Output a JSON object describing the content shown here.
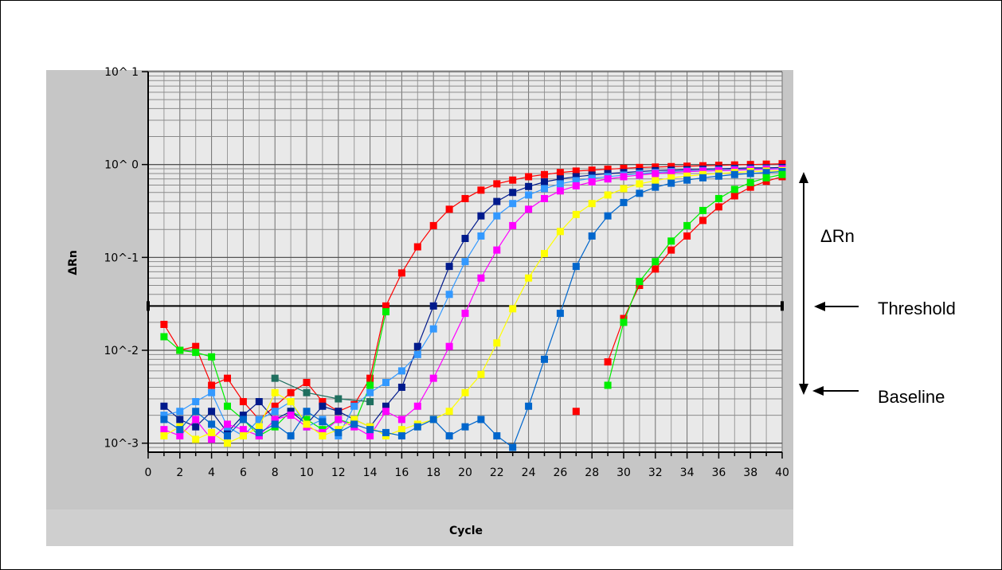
{
  "chart_data": {
    "type": "line",
    "title": "",
    "xlabel": "Cycle",
    "ylabel": "ΔRn",
    "y_scale": "log",
    "xlim": [
      0,
      40
    ],
    "ylim": [
      0.0008,
      10
    ],
    "x_ticks": [
      0,
      2,
      4,
      6,
      8,
      10,
      12,
      14,
      16,
      18,
      20,
      22,
      24,
      26,
      28,
      30,
      32,
      34,
      36,
      38,
      40
    ],
    "y_ticks": [
      {
        "value": 10,
        "label": "10^ 1"
      },
      {
        "value": 1,
        "label": "10^ 0"
      },
      {
        "value": 0.1,
        "label": "10^-1"
      },
      {
        "value": 0.01,
        "label": "10^-2"
      },
      {
        "value": 0.001,
        "label": "10^-3"
      }
    ],
    "grid": true,
    "threshold": 0.03,
    "marker": "square",
    "colors": [
      "#ff0000",
      "#00ee00",
      "#001a8c",
      "#3399ff",
      "#ff00ff",
      "#ffff00",
      "#0066cc",
      "#1f6f5f",
      "#5555ff",
      "#00cccc"
    ],
    "series": [
      {
        "color": "#ff0000",
        "x": [
          1,
          2,
          3,
          4,
          5,
          6,
          7,
          8,
          9,
          10,
          11,
          12,
          13,
          14,
          15,
          16,
          17,
          18,
          19,
          20,
          21,
          22,
          23,
          24,
          25,
          26,
          27,
          28,
          29,
          30,
          31,
          32,
          33,
          34,
          35,
          36,
          37,
          38,
          39,
          40
        ],
        "y": [
          0.019,
          0.01,
          0.011,
          0.0042,
          0.005,
          0.0028,
          0.0018,
          0.0025,
          0.0035,
          0.0045,
          0.0028,
          0.0022,
          0.0026,
          0.005,
          0.03,
          0.068,
          0.13,
          0.22,
          0.33,
          0.43,
          0.53,
          0.62,
          0.68,
          0.74,
          0.78,
          0.82,
          0.85,
          0.87,
          0.89,
          0.91,
          0.93,
          0.94,
          0.95,
          0.96,
          0.97,
          0.98,
          0.99,
          1.0,
          1.01,
          1.02
        ]
      },
      {
        "color": "#00ee00",
        "x": [
          1,
          2,
          3,
          4,
          5,
          6,
          7,
          8,
          9,
          10,
          11,
          12,
          13,
          14,
          15
        ],
        "y": [
          0.014,
          0.01,
          0.0095,
          0.0085,
          0.0025,
          0.0018,
          0.0012,
          0.0015,
          0.0022,
          0.0018,
          0.0014,
          0.0018,
          0.0016,
          0.0042,
          0.026
        ]
      },
      {
        "color": "#001a8c",
        "x": [
          1,
          2,
          3,
          4,
          5,
          6,
          7,
          8,
          9,
          10,
          11,
          12,
          13,
          14,
          15,
          16,
          17,
          18,
          19,
          20,
          21,
          22,
          23,
          24,
          25,
          26,
          27,
          28,
          29,
          30,
          31,
          32,
          33,
          34,
          35,
          36,
          37,
          38,
          39,
          40
        ],
        "y": [
          0.0025,
          0.0018,
          0.0015,
          0.0022,
          0.0013,
          0.002,
          0.0028,
          0.0018,
          0.0022,
          0.0016,
          0.0025,
          0.0022,
          0.0018,
          0.0015,
          0.0025,
          0.004,
          0.011,
          0.03,
          0.08,
          0.16,
          0.28,
          0.4,
          0.5,
          0.58,
          0.65,
          0.7,
          0.74,
          0.77,
          0.8,
          0.82,
          0.84,
          0.86,
          0.87,
          0.88,
          0.89,
          0.9,
          0.91,
          0.92,
          0.92,
          0.93
        ]
      },
      {
        "color": "#3399ff",
        "x": [
          1,
          2,
          3,
          4,
          5,
          6,
          7,
          8,
          9,
          10,
          11,
          12,
          13,
          14,
          15,
          16,
          17,
          18,
          19,
          20,
          21,
          22,
          23,
          24,
          25,
          26,
          27,
          28,
          29,
          30,
          31,
          32,
          33,
          34,
          35,
          36,
          37,
          38,
          39,
          40
        ],
        "y": [
          0.002,
          0.0022,
          0.0028,
          0.0035,
          0.0015,
          0.0012,
          0.0018,
          0.0022,
          0.0028,
          0.0015,
          0.0018,
          0.0012,
          0.0025,
          0.0035,
          0.0045,
          0.006,
          0.009,
          0.017,
          0.04,
          0.09,
          0.17,
          0.28,
          0.38,
          0.47,
          0.55,
          0.62,
          0.67,
          0.71,
          0.74,
          0.77,
          0.8,
          0.82,
          0.84,
          0.85,
          0.86,
          0.87,
          0.88,
          0.89,
          0.9,
          0.9
        ]
      },
      {
        "color": "#ff00ff",
        "x": [
          1,
          2,
          3,
          4,
          5,
          6,
          7,
          8,
          9,
          10,
          11,
          12,
          13,
          14,
          15,
          16,
          17,
          18,
          19,
          20,
          21,
          22,
          23,
          24,
          25,
          26,
          27,
          28,
          29,
          30,
          31,
          32,
          33,
          34,
          35,
          36,
          37,
          38,
          39,
          40
        ],
        "y": [
          0.0014,
          0.0012,
          0.0018,
          0.0011,
          0.0016,
          0.0014,
          0.0012,
          0.0018,
          0.002,
          0.0015,
          0.0013,
          0.0018,
          0.0015,
          0.0012,
          0.0022,
          0.0018,
          0.0025,
          0.005,
          0.011,
          0.025,
          0.06,
          0.12,
          0.22,
          0.33,
          0.43,
          0.52,
          0.59,
          0.65,
          0.7,
          0.74,
          0.77,
          0.8,
          0.82,
          0.84,
          0.85,
          0.86,
          0.87,
          0.88,
          0.89,
          0.9
        ]
      },
      {
        "color": "#ffff00",
        "x": [
          1,
          2,
          3,
          4,
          5,
          6,
          7,
          8,
          9,
          10,
          11,
          12,
          13,
          14,
          15,
          16,
          17,
          18,
          19,
          20,
          21,
          22,
          23,
          24,
          25,
          26,
          27,
          28,
          29,
          30,
          31,
          32,
          33,
          34,
          35,
          36,
          37,
          38,
          39,
          40
        ],
        "y": [
          0.0012,
          0.0015,
          0.0011,
          0.0013,
          0.001,
          0.0012,
          0.0015,
          0.0035,
          0.0028,
          0.0016,
          0.0012,
          0.0014,
          0.0018,
          0.0015,
          0.0012,
          0.0014,
          0.0016,
          0.0018,
          0.0022,
          0.0035,
          0.0055,
          0.012,
          0.028,
          0.06,
          0.11,
          0.19,
          0.29,
          0.38,
          0.47,
          0.55,
          0.62,
          0.67,
          0.72,
          0.75,
          0.78,
          0.8,
          0.82,
          0.84,
          0.85,
          0.86
        ]
      },
      {
        "color": "#0066cc",
        "x": [
          1,
          2,
          3,
          4,
          5,
          6,
          7,
          8,
          9,
          10,
          11,
          12,
          13,
          14,
          15,
          16,
          17,
          18,
          19,
          20,
          21,
          22,
          23,
          24,
          25,
          26,
          27,
          28,
          29,
          30,
          31,
          32,
          33,
          34,
          35,
          36,
          37,
          38,
          39,
          40
        ],
        "y": [
          0.0018,
          0.0014,
          0.0022,
          0.0016,
          0.0012,
          0.0018,
          0.0013,
          0.0016,
          0.0012,
          0.0022,
          0.0017,
          0.0013,
          0.0016,
          0.0014,
          0.0013,
          0.0012,
          0.0015,
          0.0018,
          0.0012,
          0.0015,
          0.0018,
          0.0012,
          0.0009,
          0.0025,
          0.008,
          0.025,
          0.08,
          0.17,
          0.28,
          0.39,
          0.49,
          0.57,
          0.63,
          0.68,
          0.72,
          0.75,
          0.78,
          0.8,
          0.82,
          0.84
        ]
      },
      {
        "color": "#1f6f5f",
        "x": [
          8,
          10,
          12,
          14
        ],
        "y": [
          0.005,
          0.0035,
          0.003,
          0.0028
        ]
      },
      {
        "color": "#ff0000",
        "x": [
          27
        ],
        "y": [
          0.0022
        ]
      },
      {
        "color": "#ff0000",
        "x": [
          29,
          30,
          31,
          32,
          33,
          34,
          35,
          36,
          37,
          38,
          39,
          40
        ],
        "y": [
          0.0075,
          0.022,
          0.05,
          0.075,
          0.12,
          0.17,
          0.25,
          0.35,
          0.46,
          0.57,
          0.66,
          0.74
        ]
      },
      {
        "color": "#00ee00",
        "x": [
          29,
          30,
          31,
          32,
          33,
          34,
          35,
          36,
          37,
          38,
          39,
          40
        ],
        "y": [
          0.0042,
          0.02,
          0.055,
          0.09,
          0.15,
          0.22,
          0.32,
          0.43,
          0.54,
          0.64,
          0.72,
          0.78
        ]
      }
    ]
  },
  "annotations": {
    "delta_rn": "ΔRn",
    "threshold": "Threshold",
    "baseline": "Baseline"
  }
}
